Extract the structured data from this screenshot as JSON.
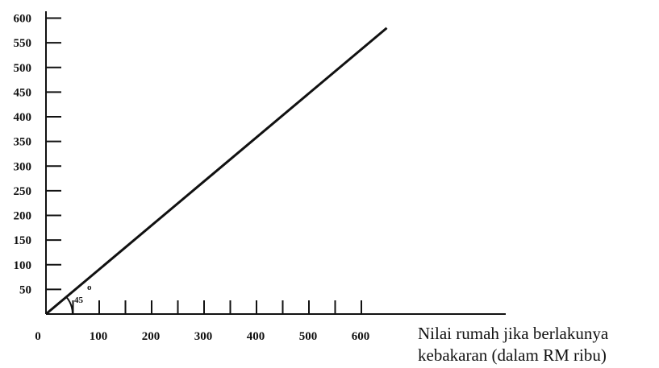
{
  "chart_data": {
    "type": "line",
    "title": "",
    "ylabel": "",
    "xlabel_lines": [
      "Nilai rumah jika berlakunya",
      "kebakaran (dalam RM ribu)"
    ],
    "xlim": [
      0,
      600
    ],
    "ylim": [
      0,
      600
    ],
    "x_ticks": [
      0,
      100,
      200,
      300,
      400,
      500,
      600
    ],
    "y_ticks": [
      50,
      100,
      150,
      200,
      250,
      300,
      350,
      400,
      450,
      500,
      550,
      600
    ],
    "series": [
      {
        "x": [
          0,
          650
        ],
        "y": [
          0,
          580
        ]
      }
    ],
    "annotation": {
      "text": "45",
      "degree": "o"
    },
    "grid": false,
    "line_color": "#111111"
  }
}
